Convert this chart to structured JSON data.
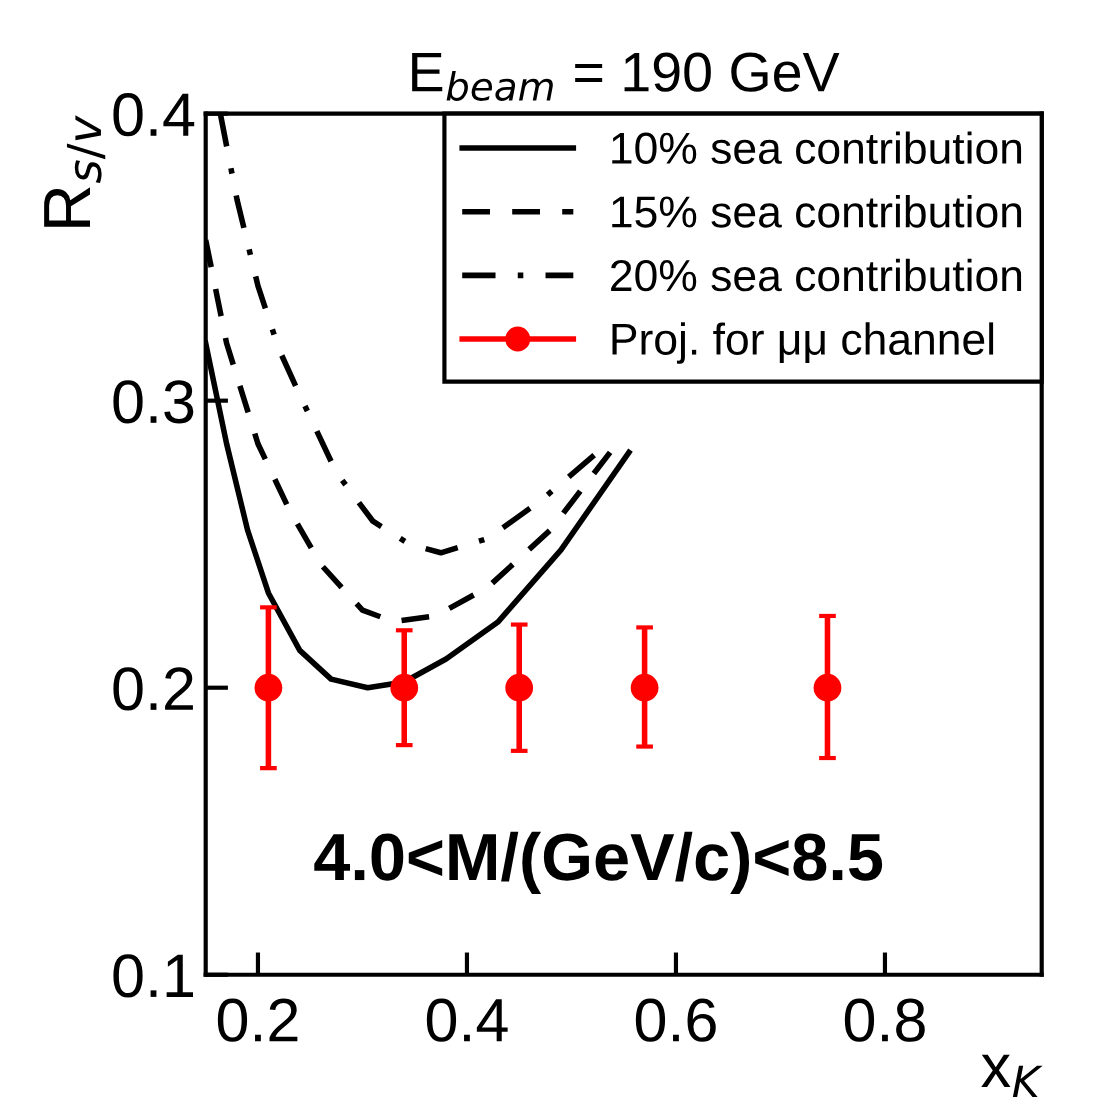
{
  "chart_data": {
    "type": "line",
    "title": "E$_{beam}$ = 190 GeV",
    "xlabel": "x$_{K}$",
    "ylabel": "R$_{s/v}$",
    "xlim": [
      0.15,
      0.95
    ],
    "xticks": [
      0.2,
      0.4,
      0.6,
      0.8
    ],
    "ylim": [
      0.1,
      0.4
    ],
    "yticks": [
      0.1,
      0.2,
      0.3,
      0.4
    ],
    "legend": "top right",
    "grid": false,
    "annotations": [
      "4.0<M/(GeV/c)<8.5"
    ],
    "series": [
      {
        "name": "10% sea contribution",
        "line_style": "solid",
        "color": "#000000",
        "x": [
          0.15,
          0.17,
          0.19,
          0.21,
          0.24,
          0.27,
          0.305,
          0.34,
          0.38,
          0.43,
          0.49,
          0.555
        ],
        "values": [
          0.32,
          0.285,
          0.255,
          0.233,
          0.213,
          0.203,
          0.2,
          0.202,
          0.21,
          0.223,
          0.248,
          0.282
        ]
      },
      {
        "name": "15% sea contribution",
        "line_style": "dashed",
        "color": "#000000",
        "x": [
          0.15,
          0.17,
          0.2,
          0.23,
          0.26,
          0.3,
          0.33,
          0.37,
          0.42,
          0.48,
          0.537
        ],
        "values": [
          0.356,
          0.32,
          0.285,
          0.262,
          0.243,
          0.227,
          0.223,
          0.225,
          0.235,
          0.255,
          0.282
        ]
      },
      {
        "name": "20% sea contribution",
        "line_style": "dashdot",
        "color": "#000000",
        "x": [
          0.164,
          0.18,
          0.2,
          0.22,
          0.24,
          0.275,
          0.31,
          0.345,
          0.375,
          0.42,
          0.47,
          0.525
        ],
        "values": [
          0.4,
          0.37,
          0.34,
          0.318,
          0.302,
          0.275,
          0.258,
          0.25,
          0.247,
          0.252,
          0.265,
          0.282
        ]
      },
      {
        "name": "Proj. for μμ channel",
        "type": "scatter",
        "marker": "circle",
        "color": "#ff0000",
        "x": [
          0.21,
          0.34,
          0.45,
          0.57,
          0.745
        ],
        "values": [
          0.2,
          0.2,
          0.2,
          0.2,
          0.2
        ],
        "errors": [
          [
            0.172,
            0.228
          ],
          [
            0.18,
            0.22
          ],
          [
            0.178,
            0.222
          ],
          [
            0.1795,
            0.221
          ],
          [
            0.1755,
            0.225
          ]
        ]
      }
    ]
  }
}
